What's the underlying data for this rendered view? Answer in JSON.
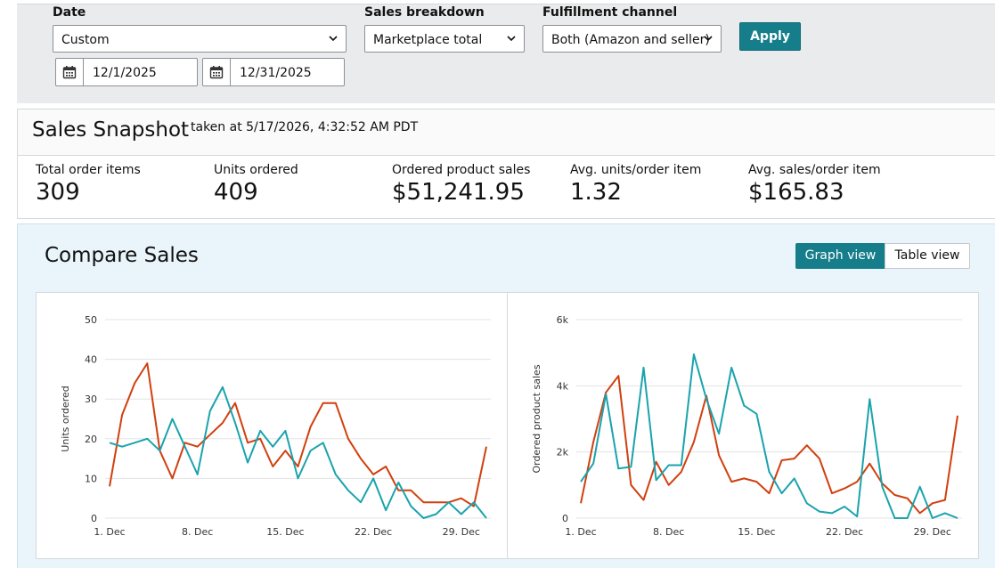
{
  "filters": {
    "date": {
      "label": "Date",
      "value": "Custom",
      "start": "12/1/2025",
      "end": "12/31/2025"
    },
    "breakdown": {
      "label": "Sales breakdown",
      "value": "Marketplace total"
    },
    "fulfillment": {
      "label": "Fulfillment channel",
      "value": "Both (Amazon and seller)"
    },
    "apply_label": "Apply"
  },
  "snapshot": {
    "title": "Sales Snapshot",
    "taken": "taken at 5/17/2026, 4:32:52 AM PDT",
    "metrics": [
      {
        "label": "Total order items",
        "value": "309"
      },
      {
        "label": "Units ordered",
        "value": "409"
      },
      {
        "label": "Ordered product sales",
        "value": "$51,241.95"
      },
      {
        "label": "Avg. units/order item",
        "value": "1.32"
      },
      {
        "label": "Avg. sales/order item",
        "value": "$165.83"
      }
    ]
  },
  "compare": {
    "title": "Compare Sales",
    "graph_view_label": "Graph view",
    "table_view_label": "Table view"
  },
  "colors": {
    "accent": "#167e8b",
    "series_a": "#d13f0f",
    "series_b": "#1aa3ad"
  },
  "chart_data": [
    {
      "type": "line",
      "ylabel": "Units ordered",
      "x": [
        "1. Dec",
        "2",
        "3",
        "4",
        "5",
        "6",
        "7",
        "8. Dec",
        "9",
        "10",
        "11",
        "12",
        "13",
        "14",
        "15. Dec",
        "16",
        "17",
        "18",
        "19",
        "20",
        "21",
        "22. Dec",
        "23",
        "24",
        "25",
        "26",
        "27",
        "28",
        "29. Dec",
        "30",
        "31"
      ],
      "x_tick_labels": [
        "1. Dec",
        "8. Dec",
        "15. Dec",
        "22. Dec",
        "29. Dec"
      ],
      "ylim": [
        0,
        50
      ],
      "y_ticks": [
        "0",
        "10",
        "20",
        "30",
        "40",
        "50"
      ],
      "series": [
        {
          "values": [
            8,
            26,
            34,
            39,
            17,
            10,
            19,
            18,
            21,
            24,
            29,
            19,
            20,
            13,
            17,
            13,
            23,
            29,
            29,
            20,
            15,
            11,
            13,
            7,
            7,
            4,
            4,
            4,
            5,
            3,
            18
          ]
        },
        {
          "values": [
            19,
            18,
            19,
            20,
            17,
            25,
            18,
            11,
            27,
            33,
            24,
            14,
            22,
            18,
            22,
            10,
            17,
            19,
            11,
            7,
            4,
            10,
            2,
            9,
            3,
            0,
            1,
            4,
            1,
            4,
            0
          ]
        }
      ]
    },
    {
      "type": "line",
      "ylabel": "Ordered product sales",
      "x": [
        "1. Dec",
        "2",
        "3",
        "4",
        "5",
        "6",
        "7",
        "8. Dec",
        "9",
        "10",
        "11",
        "12",
        "13",
        "14",
        "15. Dec",
        "16",
        "17",
        "18",
        "19",
        "20",
        "21",
        "22. Dec",
        "23",
        "24",
        "25",
        "26",
        "27",
        "28",
        "29. Dec",
        "30",
        "31"
      ],
      "x_tick_labels": [
        "1. Dec",
        "8. Dec",
        "15. Dec",
        "22. Dec",
        "29. Dec"
      ],
      "ylim": [
        0,
        6000
      ],
      "y_ticks": [
        "0",
        "2k",
        "4k",
        "6k"
      ],
      "series": [
        {
          "values": [
            450,
            2300,
            3800,
            4300,
            1000,
            550,
            1700,
            1000,
            1400,
            2300,
            3700,
            1900,
            1100,
            1200,
            1100,
            750,
            1750,
            1800,
            2200,
            1800,
            750,
            900,
            1100,
            1650,
            1050,
            700,
            600,
            150,
            450,
            550,
            3100
          ]
        },
        {
          "values": [
            1100,
            1650,
            3750,
            1500,
            1550,
            4550,
            1150,
            1600,
            1600,
            4950,
            3600,
            2550,
            4550,
            3400,
            3150,
            1400,
            750,
            1200,
            450,
            200,
            150,
            350,
            50,
            3600,
            950,
            0,
            0,
            950,
            0,
            150,
            0
          ]
        }
      ]
    }
  ]
}
